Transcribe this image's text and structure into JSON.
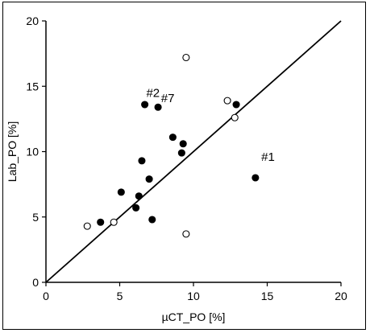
{
  "chart_data": {
    "type": "scatter",
    "title": "",
    "xlabel": "µCT_PO [%]",
    "ylabel": "Lab_PO [%]",
    "xlim": [
      0,
      20
    ],
    "ylim": [
      0,
      20
    ],
    "xticks": [
      0,
      5,
      10,
      15,
      20
    ],
    "yticks": [
      0,
      5,
      10,
      15,
      20
    ],
    "grid": false,
    "legend": "none",
    "series": [
      {
        "marker": "filled-circle",
        "color": "#000000",
        "points": [
          {
            "x": 3.7,
            "y": 4.6
          },
          {
            "x": 5.1,
            "y": 6.9
          },
          {
            "x": 6.1,
            "y": 5.7
          },
          {
            "x": 6.3,
            "y": 6.6
          },
          {
            "x": 6.5,
            "y": 9.3
          },
          {
            "x": 6.7,
            "y": 13.6
          },
          {
            "x": 7.0,
            "y": 7.9
          },
          {
            "x": 7.2,
            "y": 4.8
          },
          {
            "x": 7.6,
            "y": 13.4
          },
          {
            "x": 8.6,
            "y": 11.1
          },
          {
            "x": 9.2,
            "y": 9.9
          },
          {
            "x": 9.3,
            "y": 10.6
          },
          {
            "x": 12.9,
            "y": 13.6
          },
          {
            "x": 14.2,
            "y": 8.0
          }
        ]
      },
      {
        "marker": "open-circle",
        "color": "#000000",
        "points": [
          {
            "x": 2.8,
            "y": 4.3
          },
          {
            "x": 4.6,
            "y": 4.6
          },
          {
            "x": 9.5,
            "y": 17.2
          },
          {
            "x": 9.5,
            "y": 3.7
          },
          {
            "x": 12.3,
            "y": 13.9
          },
          {
            "x": 12.8,
            "y": 12.6
          }
        ]
      }
    ],
    "reference_line": {
      "from": [
        0,
        0
      ],
      "to": [
        20,
        20
      ]
    },
    "annotations": [
      {
        "text": "#2",
        "x": 6.8,
        "y": 14.2
      },
      {
        "text": "#7",
        "x": 7.8,
        "y": 13.8
      },
      {
        "text": "#1",
        "x": 14.6,
        "y": 9.3
      }
    ]
  }
}
